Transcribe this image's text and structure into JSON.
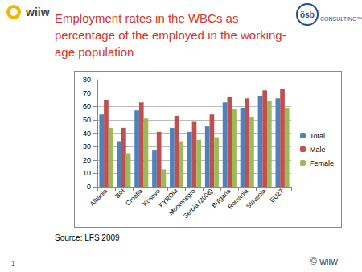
{
  "slide": {
    "logo_left": "wiiw",
    "logo_right": "ösb",
    "logo_right_sub": "CONSULTING™",
    "source": "Source: LFS 2009",
    "page": 1,
    "copyright": "© wiiw"
  },
  "chart_data": {
    "type": "bar",
    "title": "Employment rates in the WBCs as percentage of the employed in the working-age population",
    "categories": [
      "Albania",
      "BiH",
      "Croatia",
      "Kosovo",
      "FYROM",
      "Montenegro",
      "Serbia (2008)",
      "Bulgaria",
      "Romania",
      "Slovenia",
      "EU27"
    ],
    "series": [
      {
        "name": "Total",
        "color": "#4f81bd",
        "values": [
          54,
          34,
          57,
          27,
          44,
          41,
          45,
          63,
          59,
          68,
          66
        ]
      },
      {
        "name": "Male",
        "color": "#c0504d",
        "values": [
          65,
          44,
          63,
          41,
          53,
          49,
          54,
          67,
          66,
          72,
          73
        ]
      },
      {
        "name": "Female",
        "color": "#9bbb59",
        "values": [
          44,
          25,
          51,
          13,
          34,
          35,
          37,
          58,
          52,
          64,
          59
        ]
      }
    ],
    "ylim": [
      0,
      80
    ],
    "yticks": [
      0,
      10,
      20,
      30,
      40,
      50,
      60,
      70,
      80
    ],
    "grid": true,
    "legend": "right"
  }
}
